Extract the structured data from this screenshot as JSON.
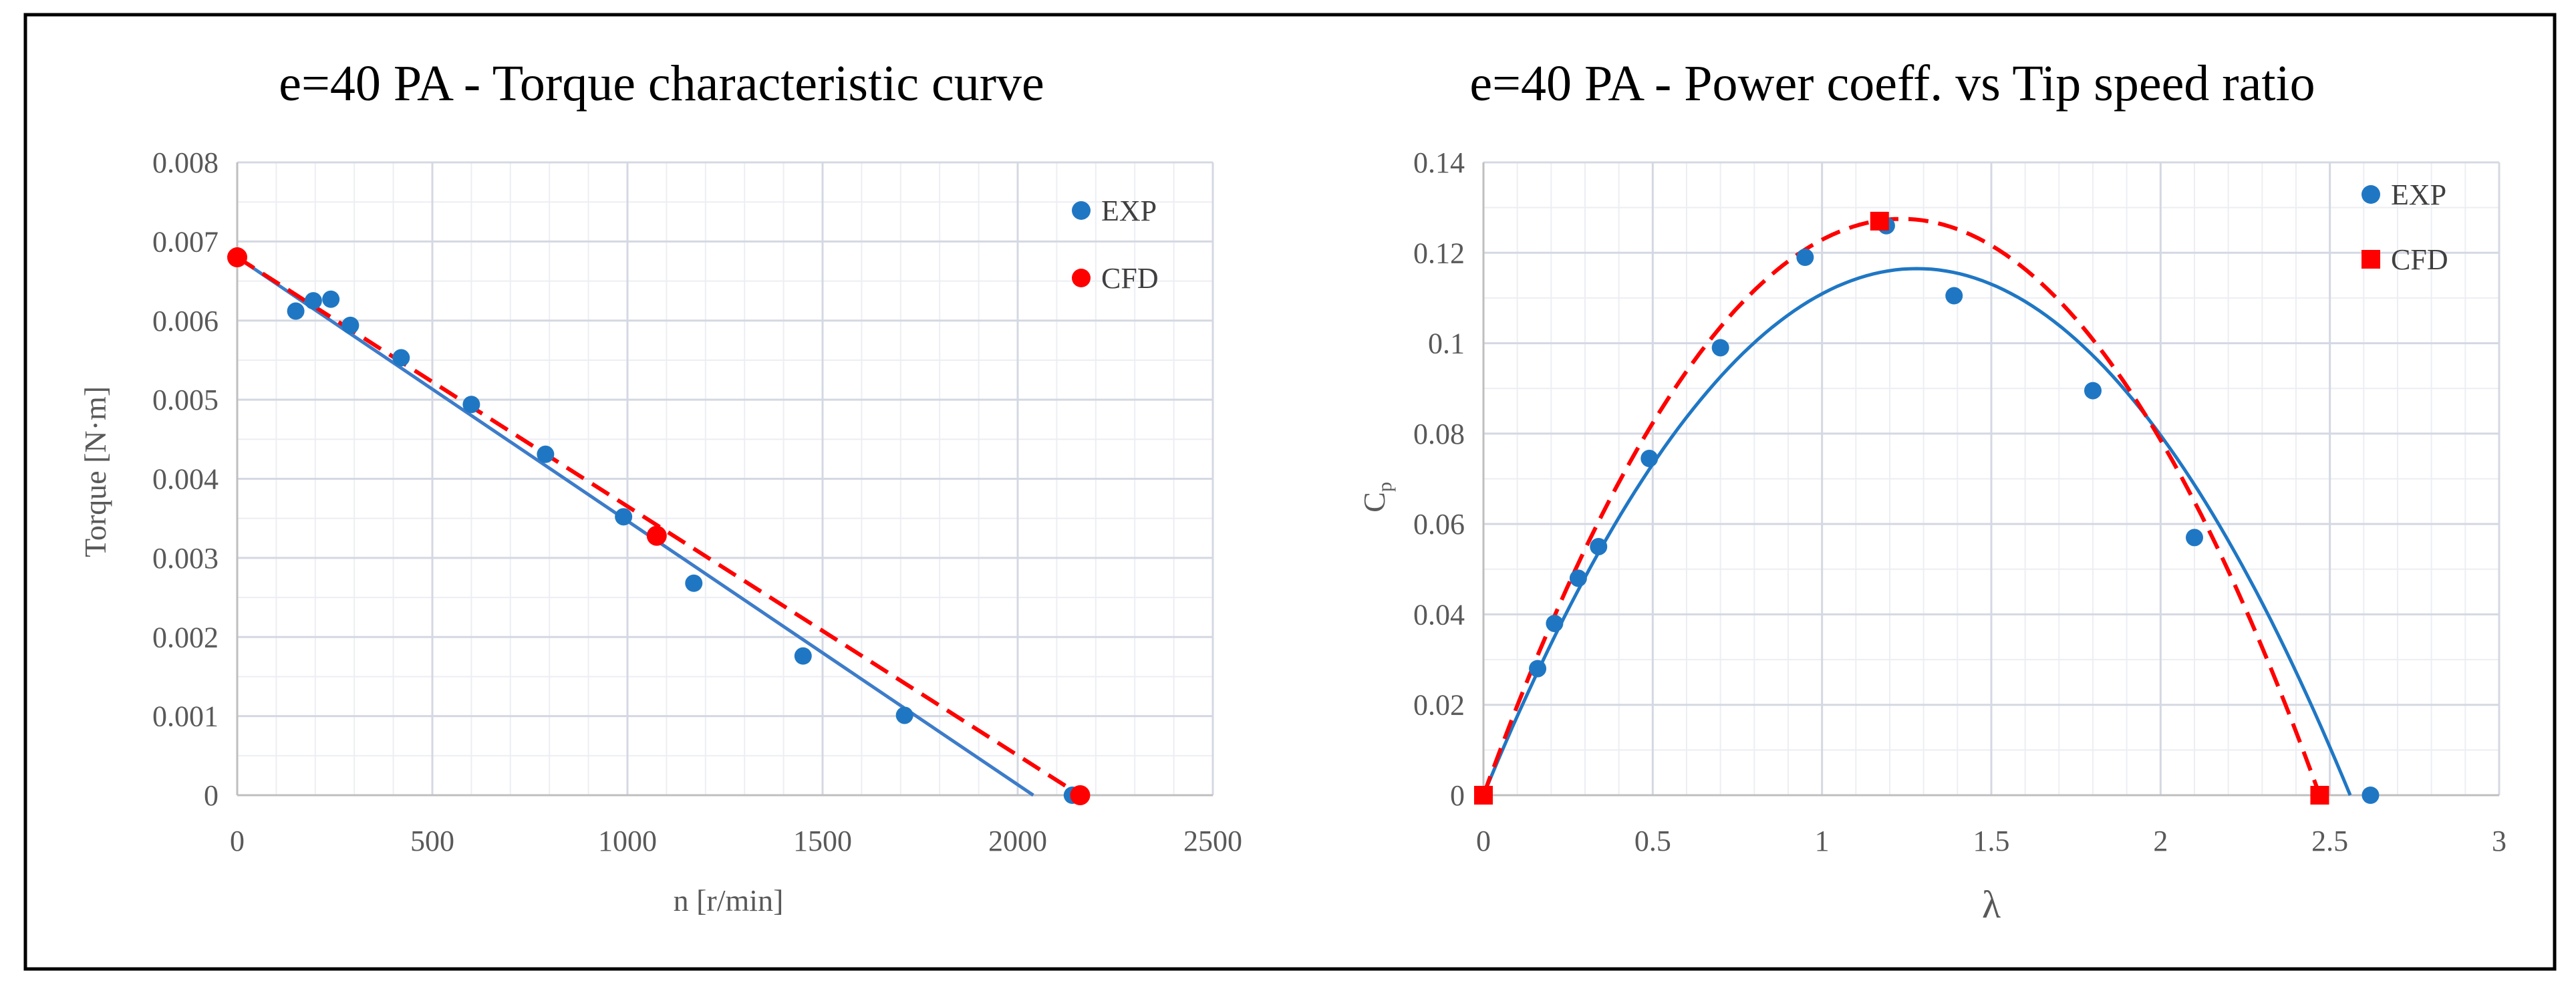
{
  "chart_data": [
    {
      "type": "scatter",
      "title": "e=40 PA - Torque characteristic curve",
      "xlabel": "n [r/min]",
      "ylabel": "Torque [N·m]",
      "xlim": [
        0,
        2500
      ],
      "ylim": [
        0,
        0.008
      ],
      "x_ticks": [
        "0",
        "500",
        "1000",
        "1500",
        "2000",
        "2500"
      ],
      "y_ticks": [
        "0",
        "0.001",
        "0.002",
        "0.003",
        "0.004",
        "0.005",
        "0.006",
        "0.007",
        "0.008"
      ],
      "legend_position": "top-right",
      "series": [
        {
          "name": "EXP",
          "marker": "circle",
          "color": "#1f77c4",
          "x": [
            150,
            195,
            240,
            290,
            420,
            600,
            790,
            990,
            1170,
            1450,
            1710,
            2140
          ],
          "y": [
            0.00612,
            0.00625,
            0.00627,
            0.00594,
            0.00553,
            0.00494,
            0.00431,
            0.00352,
            0.00268,
            0.00176,
            0.00101,
            0.0
          ],
          "trendline": {
            "kind": "linear",
            "color": "#3d7cc9",
            "style": "solid",
            "x": [
              0,
              2040
            ],
            "y": [
              0.0068,
              0.0
            ]
          }
        },
        {
          "name": "CFD",
          "marker": "circle",
          "color": "#ff0000",
          "x": [
            0,
            1075,
            2160
          ],
          "y": [
            0.0068,
            0.00328,
            0.0
          ],
          "trendline": {
            "kind": "linear",
            "color": "#ff0000",
            "style": "dashed",
            "x": [
              0,
              2160
            ],
            "y": [
              0.0068,
              0.0
            ]
          }
        }
      ]
    },
    {
      "type": "scatter",
      "title": "e=40 PA - Power coeff. vs Tip speed ratio",
      "xlabel": "λ",
      "ylabel": "Cp",
      "ylabel_main": "C",
      "ylabel_sub": "p",
      "xlim": [
        0,
        3
      ],
      "ylim": [
        0,
        0.14
      ],
      "x_ticks": [
        "0",
        "0.5",
        "1",
        "1.5",
        "2",
        "2.5",
        "3"
      ],
      "y_ticks": [
        "0",
        "0.02",
        "0.04",
        "0.06",
        "0.08",
        "0.1",
        "0.12",
        "0.14"
      ],
      "legend_position": "top-right",
      "series": [
        {
          "name": "EXP",
          "marker": "circle",
          "color": "#1f77c4",
          "x": [
            0.16,
            0.21,
            0.28,
            0.34,
            0.49,
            0.7,
            0.95,
            1.19,
            1.39,
            1.8,
            2.1,
            2.62
          ],
          "y": [
            0.028,
            0.038,
            0.048,
            0.055,
            0.0745,
            0.099,
            0.119,
            0.126,
            0.1105,
            0.0895,
            0.057,
            0.0
          ],
          "trendline": {
            "kind": "poly2",
            "color": "#1f77c4",
            "style": "solid",
            "x0": 0.0,
            "x1": 2.56,
            "ymax": 0.1165
          }
        },
        {
          "name": "CFD",
          "marker": "square",
          "color": "#ff0000",
          "x": [
            0.0,
            1.17,
            2.47
          ],
          "y": [
            0.0,
            0.127,
            0.0
          ],
          "trendline": {
            "kind": "poly2",
            "color": "#ff0000",
            "style": "dashed",
            "x0": 0.0,
            "x1": 2.47,
            "ymax": 0.1275
          }
        }
      ]
    }
  ]
}
